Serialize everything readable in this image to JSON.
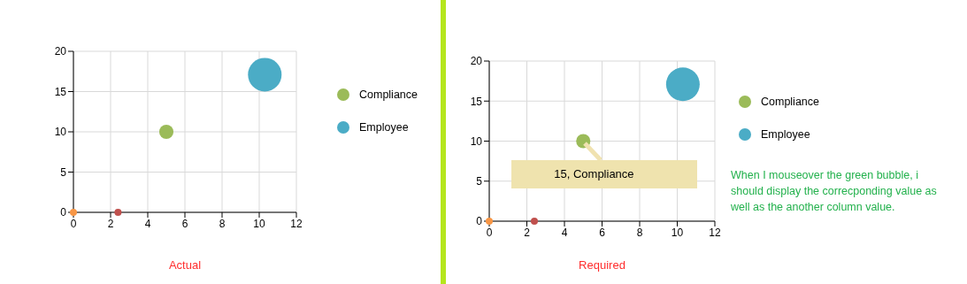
{
  "chart_data": [
    {
      "type": "bubble",
      "xlabel": "Actual",
      "xlim": [
        0,
        12
      ],
      "ylim": [
        0,
        20
      ],
      "xticks": [
        0,
        2,
        4,
        6,
        8,
        10,
        12
      ],
      "yticks": [
        0,
        5,
        10,
        15,
        20
      ],
      "grid": true,
      "legend": "right",
      "series": [
        {
          "name": "Compliance",
          "color": "#9bbb59",
          "x": [
            5
          ],
          "values": [
            10
          ],
          "sizes": [
            0.18
          ]
        },
        {
          "name": "Employee",
          "color": "#4bacc6",
          "x": [
            10.3
          ],
          "values": [
            17.1
          ],
          "sizes": [
            1
          ]
        },
        {
          "type": "scatter",
          "color": "#f79646",
          "x": [
            0
          ],
          "values": [
            0
          ]
        },
        {
          "type": "scatter",
          "color": "#c0504d",
          "x": [
            2.4
          ],
          "values": [
            0
          ]
        }
      ]
    },
    {
      "type": "bubble",
      "xlabel": "Required",
      "xlim": [
        0,
        12
      ],
      "ylim": [
        0,
        20
      ],
      "xticks": [
        0,
        2,
        4,
        6,
        8,
        10,
        12
      ],
      "yticks": [
        0,
        5,
        10,
        15,
        20
      ],
      "grid": true,
      "legend": "right",
      "annotations": [
        {
          "text": "15, Compliance",
          "x": 5,
          "y": 10
        },
        "When I mouseover the green bubble, i should display the correcponding value as well as the another column value."
      ],
      "series": [
        {
          "name": "Compliance",
          "color": "#9bbb59",
          "x": [
            5
          ],
          "values": [
            10
          ],
          "sizes": [
            0.18
          ]
        },
        {
          "name": "Employee",
          "color": "#4bacc6",
          "x": [
            10.3
          ],
          "values": [
            17.1
          ],
          "sizes": [
            1
          ]
        },
        {
          "type": "scatter",
          "color": "#f79646",
          "x": [
            0
          ],
          "values": [
            0
          ]
        },
        {
          "type": "scatter",
          "color": "#c0504d",
          "x": [
            2.4
          ],
          "values": [
            0
          ]
        }
      ]
    }
  ]
}
